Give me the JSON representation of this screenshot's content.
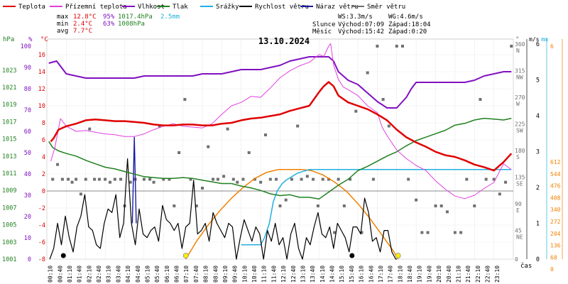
{
  "chart_data": {
    "type": "line",
    "title": "13.10.2024",
    "legend": [
      {
        "label": "Teplota",
        "color": "#e00000"
      },
      {
        "label": "Přízemní teplota",
        "color": "#e040e0"
      },
      {
        "label": "Vlhkost",
        "color": "#8010c0"
      },
      {
        "label": "Tlak",
        "color": "#208020"
      },
      {
        "label": "Srážky",
        "color": "#20b0e0"
      },
      {
        "label": "Rychlost větru",
        "color": "#000000"
      },
      {
        "label": "Náraz větru",
        "color": "#1a1aa0"
      },
      {
        "label": "Směr větru",
        "color": "#707070"
      }
    ],
    "stats": {
      "max": {
        "label": "max",
        "temp": "12.8°C",
        "hum": "95%",
        "press": "1017.4hPa",
        "rain": "2.5mm"
      },
      "min": {
        "label": "min",
        "temp": "2.4°C",
        "hum": "63%",
        "press": "1008hPa"
      },
      "avg": {
        "label": "avg",
        "temp": "7.7°C"
      }
    },
    "info": {
      "ws": "WS:3.3m/s",
      "wg": "WG:4.6m/s",
      "sun_label": "Slunce",
      "sun_rise": "Východ:07:09",
      "sun_set": "Západ:18:04",
      "moon_label": "Měsíc",
      "moon_rise": "Východ:15:42",
      "moon_set": "Západ:0:20"
    },
    "axes": {
      "hpa_title": "hPa",
      "pct_title": "%",
      "c_title": "°C",
      "dir_title": "°",
      "ms_title": "m/s",
      "mm_title": "mm",
      "time_title": "čas",
      "hpa_ticks": [
        "1023",
        "1021",
        "1019",
        "1017",
        "1015",
        "1013",
        "1011",
        "1009",
        "1007",
        "1005",
        "1003",
        "1001"
      ],
      "pct_ticks": [
        "100",
        "90",
        "80",
        "70",
        "60",
        "50",
        "40",
        "30",
        "20",
        "10",
        "0"
      ],
      "c_ticks": [
        "16",
        "14",
        "12",
        "10",
        "8",
        "6",
        "4",
        "2",
        "0",
        "-2",
        "-4",
        "-6",
        "-8"
      ],
      "dir_ticks": [
        "360 N",
        "315 NW",
        "270 W",
        "225 SW",
        "180 S",
        "135 SE",
        "90 E",
        "45 NE",
        "0"
      ],
      "ms_ticks": [
        "6",
        "5",
        "4",
        "3",
        "2",
        "1",
        "0"
      ],
      "mm_ticks": [
        "6",
        "612",
        "544",
        "476",
        "408",
        "340",
        "272",
        "204",
        "136",
        "68",
        "0"
      ],
      "time_ticks": [
        "00:10",
        "00:40",
        "01:10",
        "01:40",
        "02:10",
        "02:40",
        "03:10",
        "03:40",
        "04:10",
        "04:40",
        "05:10",
        "05:40",
        "06:10",
        "06:40",
        "07:10",
        "07:40",
        "08:10",
        "08:40",
        "09:10",
        "09:40",
        "10:10",
        "10:40",
        "11:10",
        "11:40",
        "12:10",
        "12:40",
        "13:10",
        "13:40",
        "14:10",
        "14:40",
        "15:10",
        "15:40",
        "16:10",
        "16:40",
        "17:10",
        "17:40",
        "18:10",
        "18:40",
        "19:10",
        "19:40",
        "20:10",
        "20:40",
        "21:10",
        "21:40",
        "22:10",
        "22:40",
        "23:10"
      ]
    },
    "ranges": {
      "temp": [
        -8,
        18
      ],
      "humidity": [
        0,
        100
      ],
      "pressure": [
        1001,
        1024
      ],
      "wind_ms": [
        0,
        6.2
      ],
      "rain_mm": [
        0,
        6.2
      ],
      "direction": [
        0,
        360
      ],
      "hours": [
        0,
        24
      ]
    },
    "series": {
      "temperature": {
        "color": "#e00000",
        "t": [
          0.2,
          0.35,
          0.6,
          1,
          1.5,
          2,
          2.5,
          3,
          3.5,
          4,
          4.5,
          5,
          5.5,
          6,
          6.5,
          7,
          7.5,
          8,
          8.5,
          9,
          9.5,
          10,
          10.5,
          11,
          11.5,
          12,
          12.5,
          13,
          13.5,
          14,
          14.25,
          14.5,
          14.75,
          15,
          15.5,
          16,
          16.5,
          17,
          17.5,
          18,
          18.5,
          19,
          19.5,
          20,
          20.5,
          21,
          21.5,
          22,
          22.5,
          23,
          23.5,
          23.9
        ],
        "v": [
          5.8,
          6.2,
          7.2,
          7.6,
          7.9,
          8.3,
          8.4,
          8.3,
          8.2,
          8.2,
          8.1,
          8.0,
          7.8,
          7.7,
          7.7,
          7.8,
          7.8,
          7.7,
          7.7,
          7.9,
          8.0,
          8.3,
          8.5,
          8.6,
          8.8,
          9.0,
          9.4,
          9.7,
          10.0,
          11.6,
          12.3,
          12.8,
          12.3,
          11.2,
          10.4,
          10.0,
          9.6,
          9.0,
          8.3,
          7.2,
          6.3,
          5.7,
          5.2,
          4.6,
          4.2,
          4.0,
          3.6,
          3.1,
          2.8,
          2.4,
          3.4,
          4.4
        ]
      },
      "ground_temperature": {
        "color": "#e040e0",
        "t": [
          0.2,
          0.4,
          0.7,
          1,
          1.5,
          2,
          2.5,
          3,
          3.5,
          4,
          4.5,
          5,
          5.5,
          6,
          6.5,
          7,
          7.5,
          8,
          8.5,
          9,
          9.5,
          10,
          10.5,
          11,
          11.5,
          12,
          12.5,
          13,
          13.5,
          14,
          14.25,
          14.5,
          14.6,
          14.75,
          15,
          15.25,
          15.5,
          16,
          16.5,
          17,
          17.25,
          17.5,
          18,
          18.5,
          19,
          19.5,
          20,
          20.5,
          21,
          21.5,
          22,
          22.5,
          23,
          23.5,
          23.9
        ],
        "v": [
          3.5,
          5.0,
          8.5,
          7.6,
          7.0,
          7.1,
          6.9,
          6.7,
          6.6,
          6.4,
          6.4,
          6.7,
          7.2,
          7.6,
          7.9,
          7.6,
          7.5,
          7.4,
          7.9,
          9.0,
          10.0,
          10.4,
          11.1,
          11.0,
          12.1,
          13.3,
          14.1,
          14.7,
          15.1,
          16.0,
          15.8,
          17.0,
          17.3,
          14.8,
          13.1,
          12.2,
          11.9,
          11.2,
          10.0,
          9.2,
          7.5,
          6.5,
          4.8,
          3.8,
          3.0,
          2.4,
          1.2,
          0.2,
          -0.6,
          -0.9,
          -0.5,
          0.3,
          1.0,
          3.2,
          2.5
        ]
      },
      "humidity": {
        "color": "#8010c0",
        "t": [
          0.1,
          0.5,
          1,
          1.5,
          2,
          2.5,
          3,
          3.5,
          4,
          4.5,
          5,
          5.5,
          6,
          6.5,
          7,
          7.5,
          8,
          8.5,
          9,
          9.5,
          10,
          10.5,
          11,
          11.5,
          12,
          12.5,
          13,
          13.5,
          14,
          14.5,
          14.75,
          15,
          15.5,
          16,
          16.5,
          17,
          17.5,
          18,
          18.5,
          18.75,
          19,
          19.5,
          20,
          20.5,
          21,
          21.5,
          22,
          22.5,
          23,
          23.5,
          23.9
        ],
        "v": [
          92,
          93,
          87,
          86,
          85,
          85,
          85,
          85,
          85,
          85,
          86,
          86,
          86,
          86,
          86,
          86,
          87,
          87,
          87,
          88,
          89,
          89,
          89,
          90,
          91,
          93,
          94,
          95,
          95,
          95,
          93,
          88,
          84,
          82,
          78,
          74,
          71,
          71,
          76,
          80,
          83,
          83,
          83,
          83,
          83,
          83,
          84,
          86,
          87,
          88,
          88
        ]
      },
      "pressure": {
        "color": "#208020",
        "t": [
          0.1,
          0.3,
          0.6,
          1,
          1.5,
          2,
          2.5,
          3,
          3.5,
          4,
          4.5,
          5,
          5.5,
          6,
          6.5,
          7,
          7.5,
          8,
          8.5,
          9,
          9.5,
          10,
          10.5,
          11,
          11.5,
          12,
          12.5,
          13,
          13.5,
          14,
          14.5,
          15,
          15.5,
          16,
          16.5,
          17,
          17.5,
          18,
          18.5,
          19,
          19.5,
          20,
          20.5,
          21,
          21.5,
          22,
          22.5,
          23,
          23.5,
          23.9
        ],
        "v": [
          1014.7,
          1014.0,
          1013.6,
          1013.3,
          1013.0,
          1012.5,
          1012.1,
          1011.7,
          1011.5,
          1011.2,
          1010.9,
          1010.6,
          1010.5,
          1010.4,
          1010.4,
          1010.5,
          1010.4,
          1010.2,
          1010.0,
          1009.8,
          1009.8,
          1009.5,
          1009.3,
          1009.0,
          1008.6,
          1008.4,
          1008.5,
          1008.2,
          1008.2,
          1008.0,
          1008.8,
          1009.6,
          1010.3,
          1011.3,
          1011.8,
          1012.4,
          1013.0,
          1013.5,
          1014.2,
          1014.8,
          1015.2,
          1015.6,
          1016.0,
          1016.6,
          1016.8,
          1017.2,
          1017.4,
          1017.3,
          1017.2,
          1017.4
        ]
      },
      "wind_speed": {
        "color": "#000000",
        "t": [
          0.15,
          0.35,
          0.55,
          0.75,
          0.95,
          1.15,
          1.35,
          1.55,
          1.75,
          1.95,
          2.15,
          2.35,
          2.55,
          2.75,
          2.95,
          3.15,
          3.35,
          3.55,
          3.75,
          3.95,
          4.15,
          4.35,
          4.55,
          4.75,
          4.95,
          5.15,
          5.35,
          5.55,
          5.75,
          5.95,
          6.15,
          6.35,
          6.55,
          6.75,
          6.95,
          7.15,
          7.35,
          7.55,
          7.75,
          7.95,
          8.15,
          8.35,
          8.55,
          8.75,
          8.95,
          9.15,
          9.35,
          9.55,
          9.75,
          9.95,
          10.15,
          10.35,
          10.55,
          10.75,
          10.95,
          11.15,
          11.35,
          11.55,
          11.75,
          11.95,
          12.15,
          12.35,
          12.55,
          12.75,
          12.95,
          13.15,
          13.35,
          13.55,
          13.75,
          13.95,
          14.15,
          14.35,
          14.55,
          14.75,
          14.95,
          15.15,
          15.35,
          15.55,
          15.75,
          15.95,
          16.15,
          16.35,
          16.55,
          16.75,
          16.95,
          17.15,
          17.35,
          17.55,
          17.75,
          17.95,
          18.0
        ],
        "v": [
          0.0,
          0.3,
          1.0,
          0.4,
          1.2,
          0.6,
          0.2,
          0.9,
          1.2,
          1.8,
          0.9,
          0.8,
          0.4,
          0.3,
          1.0,
          1.4,
          1.3,
          1.8,
          0.6,
          1.0,
          2.8,
          1.0,
          0.4,
          1.4,
          0.7,
          0.6,
          0.8,
          0.9,
          0.5,
          1.5,
          1.1,
          1.0,
          0.8,
          1.0,
          0.3,
          0.9,
          1.0,
          2.2,
          0.7,
          0.8,
          1.0,
          0.5,
          1.3,
          1.0,
          0.8,
          0.6,
          1.0,
          0.9,
          0.0,
          0.6,
          1.1,
          0.8,
          0.5,
          0.9,
          0.7,
          0.0,
          0.8,
          0.5,
          1.0,
          0.4,
          0.6,
          0.0,
          0.7,
          1.0,
          0.3,
          0.0,
          0.6,
          0.4,
          0.9,
          1.3,
          0.7,
          0.6,
          0.9,
          0.3,
          1.0,
          0.8,
          0.6,
          0.2,
          0.9,
          0.9,
          0.7,
          1.7,
          1.3,
          0.5,
          0.6,
          0.2,
          0.8,
          0.8,
          0.2,
          0.0,
          0.0
        ]
      },
      "wind_gust": {
        "color": "#1a1aa0",
        "t": [
          4.4,
          4.5,
          4.6
        ],
        "v": [
          1.0,
          3.4,
          1.0
        ]
      },
      "rain": {
        "color": "#20b0e0",
        "t": [
          10.0,
          10.5,
          11.0,
          11.2,
          11.45,
          11.65,
          11.85,
          12.1,
          12.3,
          12.6,
          12.9,
          13.2,
          13.5,
          13.8,
          14.1,
          16.0,
          18.0,
          20.0,
          22.0,
          23.9
        ],
        "v": [
          0.4,
          0.4,
          0.4,
          0.6,
          1.0,
          1.6,
          1.9,
          2.1,
          2.2,
          2.3,
          2.4,
          2.45,
          2.5,
          2.5,
          2.5,
          2.5,
          2.5,
          2.5,
          2.5,
          2.5
        ]
      },
      "sun_arc": {
        "color": "#f08000",
        "t": [
          7.15,
          7.7,
          8.3,
          8.9,
          9.5,
          10.1,
          10.7,
          11.3,
          11.9,
          12.6,
          13.1,
          13.6,
          14.2,
          14.8,
          15.4,
          16.0,
          16.6,
          17.2,
          17.8,
          18.07
        ],
        "v": [
          0.0,
          0.5,
          0.95,
          1.35,
          1.7,
          2.0,
          2.25,
          2.42,
          2.5,
          2.5,
          2.5,
          2.47,
          2.35,
          2.15,
          1.9,
          1.55,
          1.15,
          0.7,
          0.25,
          0.0
        ]
      },
      "wind_direction": {
        "color": "#707070",
        "t": [
          0.3,
          0.55,
          0.8,
          1.1,
          1.3,
          1.5,
          1.75,
          2.0,
          2.2,
          2.45,
          2.7,
          3.0,
          3.25,
          3.5,
          3.8,
          4.0,
          4.3,
          4.55,
          5.0,
          5.3,
          5.5,
          5.8,
          6.0,
          6.3,
          6.55,
          6.8,
          7.1,
          7.4,
          7.7,
          8.0,
          8.3,
          8.55,
          8.8,
          9.1,
          9.3,
          9.6,
          9.8,
          10.1,
          10.4,
          10.7,
          11.0,
          11.25,
          11.5,
          11.8,
          12.0,
          12.3,
          12.6,
          12.9,
          13.1,
          13.4,
          13.7,
          13.95,
          14.2,
          14.5,
          14.8,
          15.0,
          15.3,
          15.6,
          15.9,
          16.2,
          16.5,
          16.8,
          17.0,
          17.3,
          17.6,
          18.0,
          18.3,
          18.6,
          19.0,
          19.3,
          19.6,
          20.0,
          20.3,
          20.6,
          21.0,
          21.3,
          21.6,
          22.0,
          22.3,
          22.6,
          23.0,
          23.3,
          23.6,
          23.9
        ],
        "v": [
          135,
          160,
          135,
          135,
          130,
          135,
          110,
          135,
          220,
          135,
          135,
          135,
          130,
          135,
          135,
          90,
          130,
          135,
          135,
          135,
          130,
          225,
          135,
          135,
          90,
          180,
          270,
          135,
          90,
          120,
          190,
          135,
          135,
          140,
          220,
          135,
          130,
          135,
          180,
          135,
          130,
          210,
          135,
          135,
          90,
          100,
          135,
          225,
          135,
          140,
          135,
          90,
          135,
          135,
          45,
          135,
          90,
          135,
          250,
          45,
          315,
          135,
          360,
          270,
          225,
          360,
          360,
          135,
          100,
          45,
          45,
          90,
          90,
          80,
          45,
          45,
          135,
          90,
          270,
          135,
          135,
          110,
          130,
          360
        ]
      }
    }
  }
}
